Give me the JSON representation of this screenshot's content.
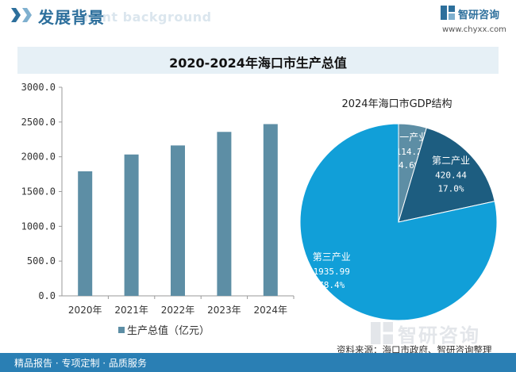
{
  "header": {
    "title": "发展背景",
    "subtitle_bg": "ment background",
    "brand_name": "智研咨询",
    "brand_url": "www.chyxx.com",
    "accent": "#2d6f9c"
  },
  "main_title": "2020-2024年海口市生产总值",
  "source": "资料来源：海口市政府、智研咨询整理",
  "footer_text": "精品报告 · 专项定制 · 品质服务",
  "watermark_text": "智研咨询",
  "chart_data": [
    {
      "type": "bar",
      "categories": [
        "2020年",
        "2021年",
        "2022年",
        "2023年",
        "2024年"
      ],
      "series": [
        {
          "name": "生产总值（亿元）",
          "values": [
            1791,
            2033,
            2163,
            2358,
            2470
          ],
          "color": "#5d8ea5"
        }
      ],
      "ylim": [
        0,
        3000
      ],
      "yticks": [
        "0.0",
        "500.0",
        "1000.0",
        "1500.0",
        "2000.0",
        "2500.0",
        "3000.0"
      ],
      "grid": false,
      "legend": "bottom"
    },
    {
      "type": "pie",
      "title": "2024年海口市GDP结构",
      "slices": [
        {
          "label": "第一产业",
          "value": "114.2",
          "pct": "4.6%",
          "share": 4.6,
          "color": "#5d8ea5"
        },
        {
          "label": "第二产业",
          "value": "420.44",
          "pct": "17.0%",
          "share": 17.0,
          "color": "#1d5d80"
        },
        {
          "label": "第三产业",
          "value": "1935.99",
          "pct": "78.4%",
          "share": 78.4,
          "color": "#119fd8"
        }
      ]
    }
  ]
}
